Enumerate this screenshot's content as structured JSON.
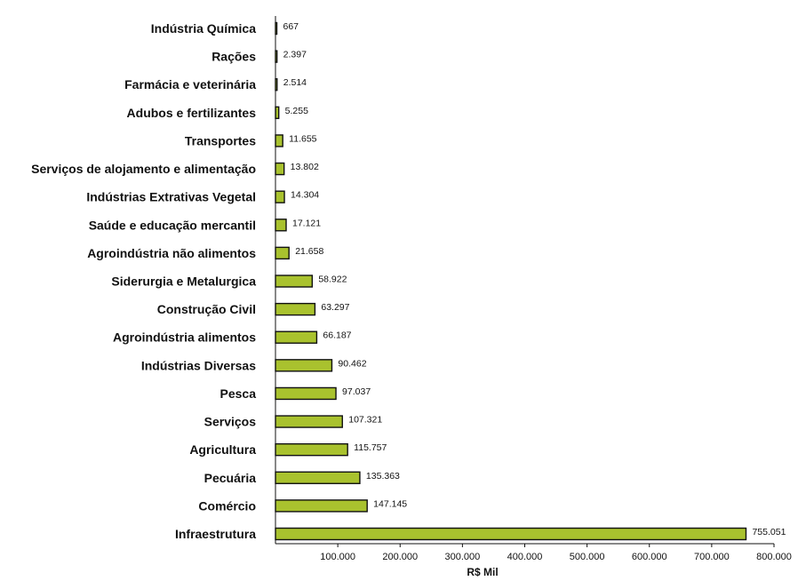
{
  "chart_data": {
    "type": "bar",
    "orientation": "horizontal",
    "categories": [
      "Indústria Química",
      "Rações",
      "Farmácia e veterinária",
      "Adubos e fertilizantes",
      "Transportes",
      "Serviços de alojamento e alimentação",
      "Indústrias Extrativas Vegetal",
      "Saúde e educação mercantil",
      "Agroindústria não alimentos",
      "Siderurgia e Metalurgica",
      "Construção Civil",
      "Agroindústria alimentos",
      "Indústrias Diversas",
      "Pesca",
      "Serviços",
      "Agricultura",
      "Pecuária",
      "Comércio",
      "Infraestrutura"
    ],
    "values": [
      667,
      2397,
      2514,
      5255,
      11655,
      13802,
      14304,
      17121,
      21658,
      58922,
      63297,
      66187,
      90462,
      97037,
      107321,
      115757,
      135363,
      147145,
      755051
    ],
    "value_labels": [
      "667",
      "2.397",
      "2.514",
      "5.255",
      "11.655",
      "13.802",
      "14.304",
      "17.121",
      "21.658",
      "58.922",
      "63.297",
      "66.187",
      "90.462",
      "97.037",
      "107.321",
      "115.757",
      "135.363",
      "147.145",
      "755.051"
    ],
    "xlim": [
      0,
      800000
    ],
    "xticks": [
      100000,
      200000,
      300000,
      400000,
      500000,
      600000,
      700000,
      800000
    ],
    "xtick_labels": [
      "100.000",
      "200.000",
      "300.000",
      "400.000",
      "500.000",
      "600.000",
      "700.000",
      "800.000"
    ],
    "xlabel": "R$ Mil",
    "grid": false,
    "colors": {
      "bar_fill": "#a9c22e",
      "bar_stroke": "#111111",
      "text": "#111111"
    }
  }
}
